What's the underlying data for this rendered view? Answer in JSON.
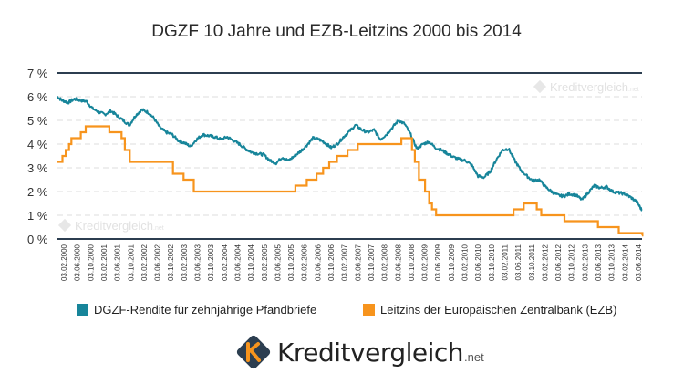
{
  "title": "DGZF 10 Jahre und EZB-Leitzins 2000 bis 2014",
  "watermark": "Kreditvergleich",
  "watermark_tld": ".net",
  "logo": {
    "brand": "Kreditvergleich",
    "tld": ".net"
  },
  "colors": {
    "dgzf": "#17859a",
    "ezb": "#f7941d",
    "axis": "#2c3e50",
    "grid": "#dddddd"
  },
  "legend": [
    {
      "name": "DGZF-Rendite für zehnjährige Pfandbriefe",
      "color": "#17859a"
    },
    {
      "name": "Leitzins der Europäischen Zentralbank (EZB)",
      "color": "#f7941d"
    }
  ],
  "chart_data": {
    "type": "line",
    "title": "DGZF 10 Jahre und EZB-Leitzins 2000 bis 2014",
    "ylim": [
      0,
      7
    ],
    "yticks": [
      "0 %",
      "1 %",
      "2 %",
      "3 %",
      "4 %",
      "5 %",
      "6 %",
      "7 %"
    ],
    "xlim": [
      2000.087,
      2014.42
    ],
    "xticks": [
      "03.02.2000",
      "03.06.2000",
      "03.10.2000",
      "03.02.2001",
      "03.06.2001",
      "03.10.2001",
      "03.02.2002",
      "03.06.2002",
      "03.10.2002",
      "03.02.2003",
      "03.06.2003",
      "03.10.2003",
      "03.02.2004",
      "03.06.2004",
      "03.10.2004",
      "03.02.2005",
      "03.06.2005",
      "03.10.2005",
      "03.02.2006",
      "03.06.2006",
      "03.10.2006",
      "03.02.2007",
      "03.06.2007",
      "03.10.2007",
      "03.02.2008",
      "03.06.2008",
      "03.10.2008",
      "03.02.2009",
      "03.06.2009",
      "03.10.2009",
      "03.02.2010",
      "03.06.2010",
      "03.10.2010",
      "03.02.2011",
      "03.06.2011",
      "03.10.2011",
      "03.02.2012",
      "03.06.2012",
      "03.10.2012",
      "03.02.2013",
      "03.06.2013",
      "03.10.2013",
      "03.02.2014",
      "03.06.2014"
    ],
    "series": [
      {
        "name": "DGZF-Rendite für zehnjährige Pfandbriefe",
        "style": "line",
        "x": [
          2000.08,
          2000.2,
          2000.35,
          2000.5,
          2000.65,
          2000.8,
          2000.95,
          2001.1,
          2001.25,
          2001.4,
          2001.55,
          2001.7,
          2001.85,
          2002.0,
          2002.15,
          2002.3,
          2002.45,
          2002.6,
          2002.75,
          2002.9,
          2003.05,
          2003.2,
          2003.35,
          2003.5,
          2003.65,
          2003.8,
          2003.95,
          2004.1,
          2004.25,
          2004.4,
          2004.55,
          2004.7,
          2004.85,
          2005.0,
          2005.15,
          2005.3,
          2005.45,
          2005.6,
          2005.75,
          2005.9,
          2006.05,
          2006.2,
          2006.35,
          2006.5,
          2006.65,
          2006.8,
          2006.95,
          2007.1,
          2007.25,
          2007.4,
          2007.55,
          2007.7,
          2007.85,
          2008.0,
          2008.15,
          2008.3,
          2008.45,
          2008.6,
          2008.75,
          2008.9,
          2009.05,
          2009.2,
          2009.35,
          2009.5,
          2009.65,
          2009.8,
          2009.95,
          2010.1,
          2010.25,
          2010.4,
          2010.55,
          2010.7,
          2010.85,
          2011.0,
          2011.15,
          2011.3,
          2011.45,
          2011.6,
          2011.75,
          2011.9,
          2012.05,
          2012.2,
          2012.35,
          2012.5,
          2012.65,
          2012.8,
          2012.95,
          2013.1,
          2013.25,
          2013.4,
          2013.55,
          2013.7,
          2013.85,
          2014.0,
          2014.15,
          2014.3,
          2014.42
        ],
        "y": [
          6.0,
          5.85,
          5.75,
          5.9,
          5.85,
          5.8,
          5.5,
          5.35,
          5.25,
          5.4,
          5.2,
          5.0,
          4.8,
          5.2,
          5.45,
          5.35,
          5.1,
          4.7,
          4.5,
          4.4,
          4.15,
          4.05,
          3.9,
          4.2,
          4.4,
          4.35,
          4.3,
          4.2,
          4.3,
          4.15,
          4.0,
          3.8,
          3.65,
          3.6,
          3.55,
          3.3,
          3.2,
          3.45,
          3.3,
          3.5,
          3.7,
          3.95,
          4.25,
          4.2,
          4.05,
          3.85,
          4.0,
          4.3,
          4.55,
          4.8,
          4.6,
          4.5,
          4.6,
          4.2,
          4.4,
          4.7,
          5.0,
          4.85,
          4.4,
          3.8,
          4.0,
          4.1,
          3.85,
          3.75,
          3.6,
          3.45,
          3.35,
          3.3,
          3.1,
          2.65,
          2.6,
          2.85,
          3.35,
          3.75,
          3.8,
          3.3,
          2.9,
          2.65,
          2.45,
          2.5,
          2.2,
          2.0,
          1.85,
          1.8,
          1.9,
          1.85,
          1.65,
          1.95,
          2.25,
          2.15,
          2.2,
          2.0,
          1.95,
          1.9,
          1.75,
          1.55,
          1.2
        ]
      },
      {
        "name": "Leitzins der Europäischen Zentralbank (EZB)",
        "style": "step",
        "x": [
          2000.08,
          2000.21,
          2000.29,
          2000.37,
          2000.43,
          2000.66,
          2000.78,
          2001.36,
          2001.66,
          2001.74,
          2001.86,
          2002.92,
          2003.18,
          2003.43,
          2005.92,
          2006.2,
          2006.44,
          2006.6,
          2006.75,
          2006.94,
          2007.2,
          2007.45,
          2008.52,
          2008.78,
          2008.85,
          2008.95,
          2009.1,
          2009.2,
          2009.27,
          2009.37,
          2011.27,
          2011.52,
          2011.84,
          2011.95,
          2012.52,
          2013.34,
          2013.85,
          2014.43
        ],
        "y": [
          3.25,
          3.5,
          3.75,
          4.0,
          4.25,
          4.5,
          4.75,
          4.5,
          4.25,
          3.75,
          3.25,
          2.75,
          2.5,
          2.0,
          2.25,
          2.5,
          2.75,
          3.0,
          3.25,
          3.5,
          3.75,
          4.0,
          4.25,
          3.75,
          3.25,
          2.5,
          2.0,
          1.5,
          1.25,
          1.0,
          1.25,
          1.5,
          1.25,
          1.0,
          0.75,
          0.5,
          0.25,
          0.15
        ]
      }
    ]
  }
}
